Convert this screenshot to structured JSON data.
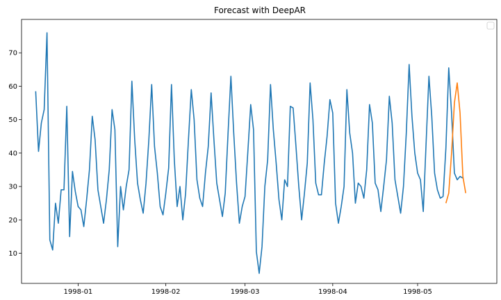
{
  "title": "Forecast with DeepAR",
  "chart_data": {
    "type": "line",
    "title": "Forecast with DeepAR",
    "xlabel": "",
    "ylabel": "",
    "x_type": "date",
    "xlim": [
      "1997-12-12",
      "1998-05-29"
    ],
    "ylim": [
      1,
      80
    ],
    "x_ticks": [
      {
        "date": "1998-01-01",
        "label": "1998-01"
      },
      {
        "date": "1998-02-01",
        "label": "1998-02"
      },
      {
        "date": "1998-03-01",
        "label": "1998-03"
      },
      {
        "date": "1998-04-01",
        "label": "1998-04"
      },
      {
        "date": "1998-05-01",
        "label": "1998-05"
      }
    ],
    "y_ticks": [
      10,
      20,
      30,
      40,
      50,
      60,
      70
    ],
    "grid": false,
    "legend": {
      "placement": "top-right",
      "entries": []
    },
    "series": [
      {
        "color": "#1f77b4",
        "start": "1997-12-17",
        "values": [
          58.5,
          40.5,
          49,
          53,
          76,
          14,
          11,
          25,
          19,
          29,
          29,
          54,
          15,
          34.5,
          28.5,
          24,
          23,
          18,
          26,
          35,
          51,
          44,
          29,
          24,
          19,
          26,
          35,
          53,
          47,
          12,
          30,
          23,
          30,
          35,
          61.5,
          44,
          31,
          26,
          22,
          31,
          44,
          60.5,
          42,
          34,
          24,
          21.5,
          28,
          35.5,
          60.5,
          38,
          24,
          30,
          20,
          28,
          44,
          59,
          50,
          32,
          26.5,
          24,
          34,
          42,
          58,
          44,
          31,
          26,
          21,
          28,
          46,
          63,
          46,
          31,
          19,
          24,
          27,
          40.5,
          54.5,
          47,
          10.5,
          4,
          12,
          30,
          38,
          60.5,
          47,
          37,
          26,
          20,
          32,
          30,
          54,
          53.5,
          42,
          30,
          20,
          28,
          37,
          61,
          50,
          31,
          27.5,
          27.5,
          37,
          45,
          56,
          52,
          25,
          19,
          24,
          30,
          59,
          46,
          40,
          25,
          31,
          30,
          26.5,
          35,
          54.5,
          49,
          31,
          29,
          22.5,
          30,
          38,
          57,
          49,
          32,
          27,
          22,
          30,
          46,
          66.5,
          51,
          40,
          34,
          32,
          22.5,
          43,
          63,
          51,
          34,
          29,
          26.5,
          27,
          41.5,
          65.5,
          52,
          34,
          32,
          33,
          32.5
        ]
      },
      {
        "color": "#ff7f0e",
        "start": "1998-05-11",
        "values": [
          25,
          28,
          40,
          55,
          61,
          52,
          33,
          28
        ]
      }
    ]
  }
}
